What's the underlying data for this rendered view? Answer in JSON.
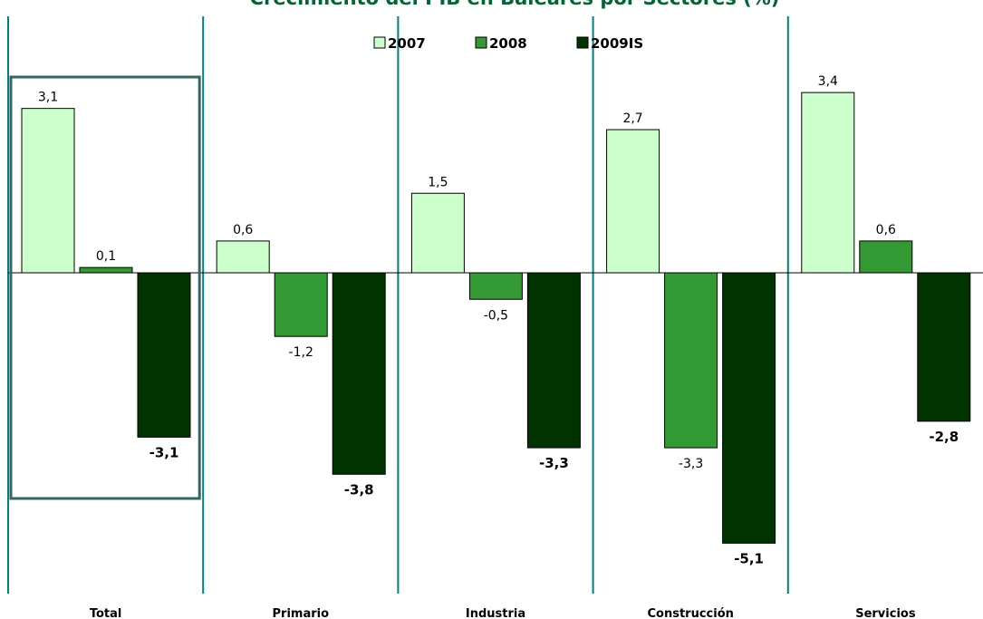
{
  "chart_data": {
    "type": "bar",
    "title": "Crecimiento del PIB en Baleares por Sectores (%)",
    "categories": [
      "Total",
      "Primario",
      "Industria",
      "Construcción",
      "Servicios"
    ],
    "series": [
      {
        "name": "2007",
        "values": [
          3.1,
          0.6,
          1.5,
          2.7,
          3.4
        ],
        "color": "#ccffcc",
        "labels": [
          "3,1",
          "0,6",
          "1,5",
          "2,7",
          "3,4"
        ]
      },
      {
        "name": "2008",
        "values": [
          0.1,
          -1.2,
          -0.5,
          -3.3,
          0.6
        ],
        "color": "#339933",
        "labels": [
          "0,1",
          "-1,2",
          "-0,5",
          "-3,3",
          "0,6"
        ]
      },
      {
        "name": "2009IS",
        "values": [
          -3.1,
          -3.8,
          -3.3,
          -5.1,
          -2.8
        ],
        "color": "#003300",
        "labels": [
          "-3,1",
          "-3,8",
          "-3,3",
          "-5,1",
          "-2,8"
        ]
      }
    ],
    "ylim": [
      -6.0,
      4.5
    ],
    "grid": false,
    "legend_position": "top-center",
    "highlighted_category": "Total",
    "separator_color": "#008080",
    "highlight_color": "#336666"
  }
}
